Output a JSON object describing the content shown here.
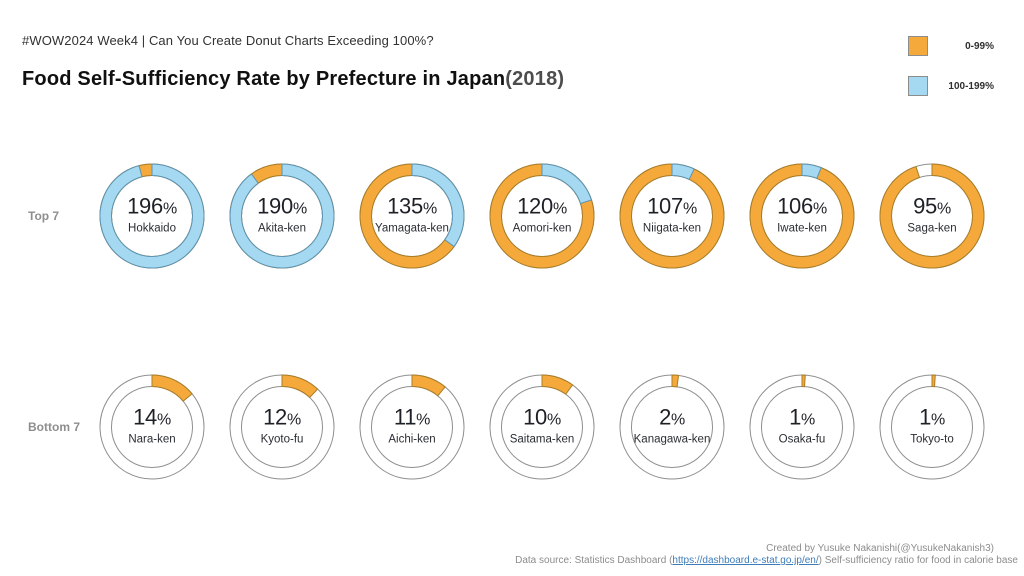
{
  "header": {
    "subtitle": "#WOW2024 Week4 | Can You Create Donut Charts Exceeding 100%?",
    "title_main": "Food Self-Sufficiency Rate by Prefecture in Japan",
    "title_year": "(2018)"
  },
  "legend": {
    "items": [
      {
        "label": "0-99%",
        "color": "#F5A93B"
      },
      {
        "label": "100-199%",
        "color": "#A5D9F2"
      }
    ]
  },
  "colors": {
    "orange": "#F5A93B",
    "orange_border": "#A97D26",
    "blue": "#A5D9F2",
    "blue_border": "#5C93B0",
    "ring_border": "#8F8F8F",
    "ring_fill": "#FFFFFF"
  },
  "chart_data": {
    "type": "pie",
    "subtype": "donut-exceeding-100",
    "title": "Food Self-Sufficiency Rate by Prefecture in Japan(2018)",
    "unit": "%",
    "value_encoding": "orange arc = 0-99% portion, blue arc overlays second lap for 100-199%",
    "legend": [
      {
        "label": "0-99%",
        "color": "#F5A93B"
      },
      {
        "label": "100-199%",
        "color": "#A5D9F2"
      }
    ],
    "rows": [
      {
        "label": "Top 7",
        "items": [
          {
            "name": "Hokkaido",
            "value": 196
          },
          {
            "name": "Akita-ken",
            "value": 190
          },
          {
            "name": "Yamagata-ken",
            "value": 135
          },
          {
            "name": "Aomori-ken",
            "value": 120
          },
          {
            "name": "Niigata-ken",
            "value": 107
          },
          {
            "name": "Iwate-ken",
            "value": 106
          },
          {
            "name": "Saga-ken",
            "value": 95
          }
        ]
      },
      {
        "label": "Bottom 7",
        "items": [
          {
            "name": "Nara-ken",
            "value": 14
          },
          {
            "name": "Kyoto-fu",
            "value": 12
          },
          {
            "name": "Aichi-ken",
            "value": 11
          },
          {
            "name": "Saitama-ken",
            "value": 10
          },
          {
            "name": "Kanagawa-ken",
            "value": 2
          },
          {
            "name": "Osaka-fu",
            "value": 1
          },
          {
            "name": "Tokyo-to",
            "value": 1
          }
        ]
      }
    ]
  },
  "footer": {
    "credit": "Created by Yusuke Nakanishi(@YusukeNakanish3)",
    "source_prefix": "Data source: Statistics Dashboard (",
    "source_link": "https://dashboard.e-stat.go.jp/en/",
    "source_suffix": ") Self-sufficiency ratio for food in calorie base"
  }
}
